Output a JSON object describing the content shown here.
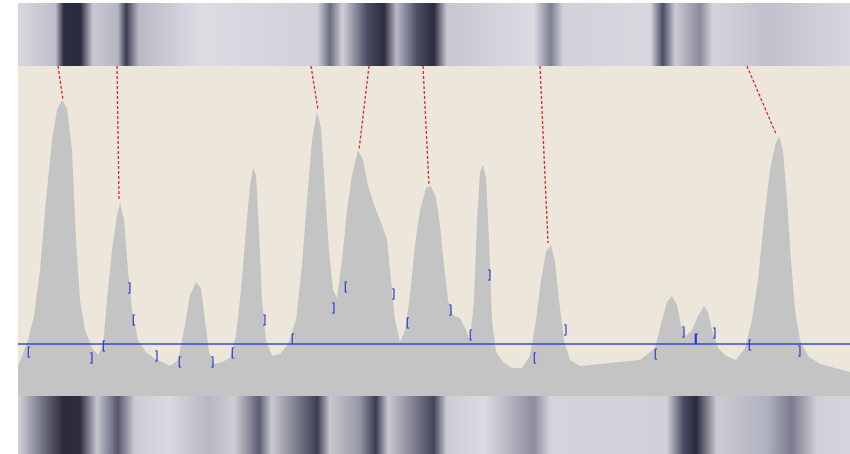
{
  "colors": {
    "panel_background": "#ece7da",
    "profile_fill": "#c4c4c4",
    "baseline": "#1a2fd0",
    "bracket": "#1a2fd0",
    "band_link": "#e0262a",
    "strip_base": "#d4d5dc",
    "band_dark": "#2a2a3c"
  },
  "bracket_glyphs": {
    "open": "[",
    "close": "]"
  },
  "bracket_marks": [
    "[",
    "]",
    "[",
    "]",
    "[",
    "]",
    "[",
    "]",
    "[",
    "]",
    "[",
    "]",
    "[",
    "]",
    "[",
    "]",
    "[",
    "]",
    "[",
    "]",
    "[",
    "]",
    "[",
    "]",
    "[",
    "]",
    "[",
    "]"
  ]
}
